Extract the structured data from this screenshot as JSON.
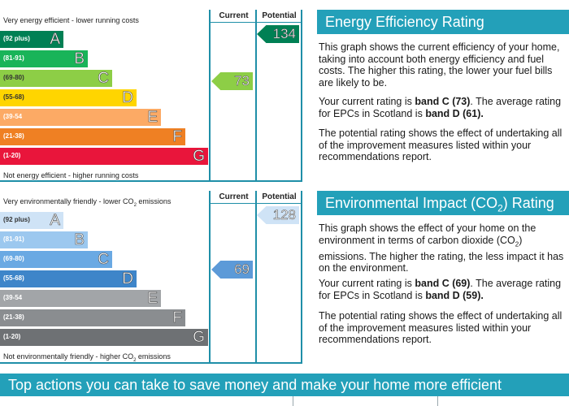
{
  "energy": {
    "top_label": "Very energy efficient - lower running costs",
    "bottom_label": "Not energy efficient - higher running costs",
    "col_current": "Current",
    "col_potential": "Potential",
    "bands": [
      {
        "range": "(92 plus)",
        "letter": "A",
        "color": "#008054"
      },
      {
        "range": "(81-91)",
        "letter": "B",
        "color": "#19b459"
      },
      {
        "range": "(69-80)",
        "letter": "C",
        "color": "#8dce46"
      },
      {
        "range": "(55-68)",
        "letter": "D",
        "color": "#ffd500"
      },
      {
        "range": "(39-54",
        "letter": "E",
        "color": "#fcaa65"
      },
      {
        "range": "(21-38)",
        "letter": "F",
        "color": "#ef8023"
      },
      {
        "range": "(1-20)",
        "letter": "G",
        "color": "#e9153b"
      }
    ],
    "current_value": "73",
    "current_color": "#8dce46",
    "potential_value": "134",
    "potential_color": "#008054"
  },
  "environment": {
    "top_label": "Very environmentally friendly - lower CO",
    "top_label_sub": "2",
    "top_label_end": " emissions",
    "bottom_label": "Not environmentally friendly - higher CO",
    "bottom_label_sub": "2",
    "bottom_label_end": " emissions",
    "col_current": "Current",
    "col_potential": "Potential",
    "bands": [
      {
        "range": "(92 plus)",
        "letter": "A",
        "color": "#cfe3f6"
      },
      {
        "range": "(81-91)",
        "letter": "B",
        "color": "#9cc8ef"
      },
      {
        "range": "(69-80)",
        "letter": "C",
        "color": "#6aa9e3"
      },
      {
        "range": "(55-68)",
        "letter": "D",
        "color": "#3e85c9"
      },
      {
        "range": "(39-54",
        "letter": "E",
        "color": "#a2a5a8"
      },
      {
        "range": "(21-38)",
        "letter": "F",
        "color": "#8a8d90"
      },
      {
        "range": "(1-20)",
        "letter": "G",
        "color": "#6e7174"
      }
    ],
    "current_value": "69",
    "current_color": "#5c9ad8",
    "potential_value": "128",
    "potential_color": "#cfe3f6"
  },
  "eer_section": {
    "heading": "Energy Efficiency Rating",
    "para1": "This graph shows the current efficiency of your home, taking into account both energy efficiency and fuel costs. The higher this rating, the lower your fuel bills are likely to be.",
    "para1_lines": [
      "This graph shows the current efficiency of your home,",
      "taking into account both energy efficiency and fuel",
      "costs. The higher this rating, the lower your fuel bills",
      "are likely to be."
    ],
    "para2_lines": [
      {
        "pre": "Your current rating is ",
        "bold": "band C (73)",
        "post": ". The average rating"
      },
      {
        "pre": "for EPCs in Scotland is ",
        "bold": "band D (61).",
        "post": ""
      }
    ],
    "para3_lines": [
      "The potential rating shows the effect of undertaking all",
      "of the improvement measures listed within your",
      "recommendations report."
    ]
  },
  "eir_section": {
    "heading": "Environmental Impact (CO",
    "heading_sub": "2",
    "heading_end": ") Rating",
    "para1_lines": [
      "This graph shows the effect of your home on the",
      "environment in terms of carbon dioxide (CO",
      "emissions. The higher the rating, the less impact it has",
      "on the environment."
    ],
    "para1_sub": "2",
    "para1_sub_end": ")",
    "para2_lines": [
      {
        "pre": "Your current rating is ",
        "bold": "band C (69)",
        "post": ". The average rating"
      },
      {
        "pre": "for EPCs in Scotland is ",
        "bold": "band D (59).",
        "post": ""
      }
    ],
    "para3_lines": [
      "The potential rating shows the effect of undertaking all",
      "of the improvement measures listed within your",
      "recommendations report."
    ]
  },
  "bottom_banner": "Top actions you can take to save money and make your home more efficient"
}
